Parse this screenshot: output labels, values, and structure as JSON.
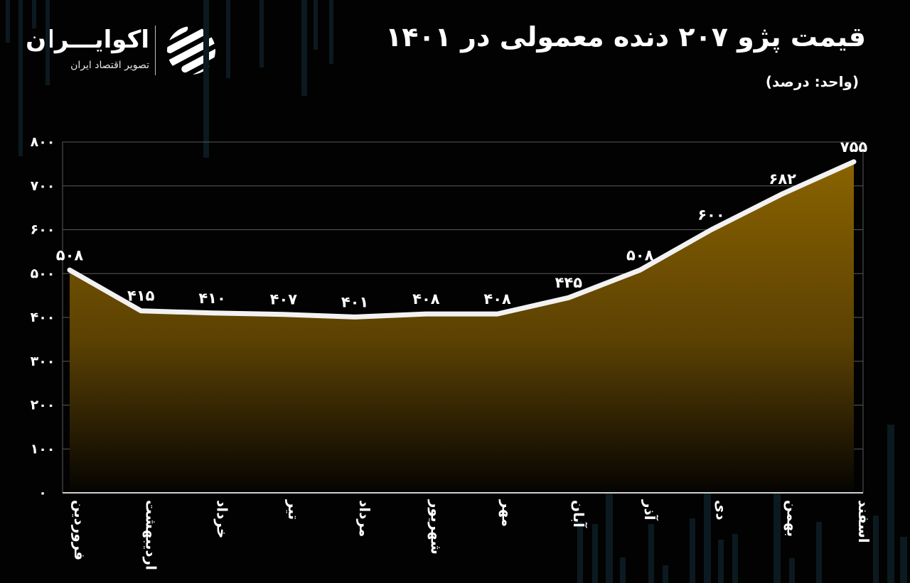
{
  "header": {
    "title": "قیمت پژو ۲۰۷ دنده معمولی در ۱۴۰۱",
    "subtitle": "(واحد: درصد)"
  },
  "brand": {
    "name": "اکوایـــران",
    "tagline": "تصویر اقتصاد ایران",
    "mark_icon": "striped-circle-logo-icon"
  },
  "colors": {
    "background": "#020202",
    "line": "#f2f2f2",
    "area_top": "#8a6300",
    "area_bottom": "#050402",
    "grid": "#5a5a5a"
  },
  "chart_data": {
    "type": "area",
    "title": "قیمت پژو ۲۰۷ دنده معمولی در ۱۴۰۱",
    "unit": "(واحد: درصد)",
    "categories": [
      "فروردین",
      "اردیبهشت",
      "خرداد",
      "تیر",
      "مرداد",
      "شهریور",
      "مهر",
      "آبان",
      "آذر",
      "دی",
      "بهمن",
      "اسفند"
    ],
    "values": [
      508,
      415,
      410,
      407,
      401,
      408,
      408,
      445,
      508,
      600,
      682,
      755
    ],
    "value_labels": [
      "۵۰۸",
      "۴۱۵",
      "۴۱۰",
      "۴۰۷",
      "۴۰۱",
      "۴۰۸",
      "۴۰۸",
      "۴۴۵",
      "۵۰۸",
      "۶۰۰",
      "۶۸۲",
      "۷۵۵"
    ],
    "ylim": [
      0,
      800
    ],
    "yticks": [
      0,
      100,
      200,
      300,
      400,
      500,
      600,
      700,
      800
    ],
    "ytick_labels": [
      "۰",
      "۱۰۰",
      "۲۰۰",
      "۳۰۰",
      "۴۰۰",
      "۵۰۰",
      "۶۰۰",
      "۷۰۰",
      "۸۰۰"
    ],
    "grid": true,
    "legend": "none"
  }
}
